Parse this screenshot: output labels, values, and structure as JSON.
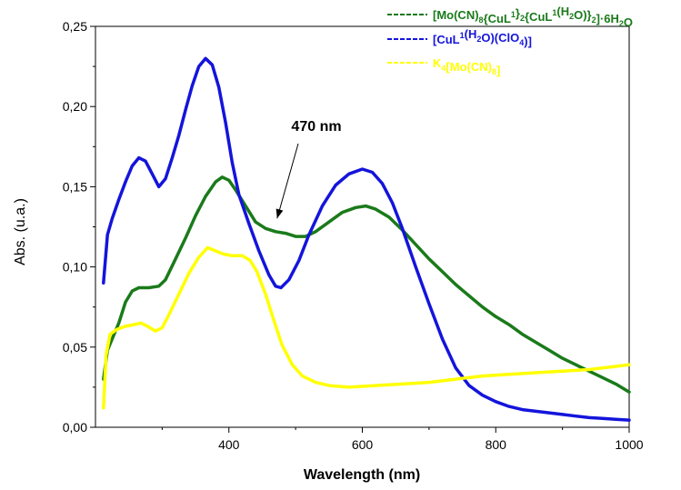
{
  "chart_data": {
    "type": "line",
    "title": "",
    "xlabel": "Wavelength (nm)",
    "ylabel": "Abs. (u.a.)",
    "xlim": [
      200,
      1000
    ],
    "ylim": [
      0.0,
      0.25
    ],
    "x_ticks": [
      {
        "value": 400,
        "label": "400"
      },
      {
        "value": 600,
        "label": "600"
      },
      {
        "value": 800,
        "label": "800"
      },
      {
        "value": 1000,
        "label": "1000"
      }
    ],
    "y_ticks": [
      {
        "value": 0.0,
        "label": "0,00"
      },
      {
        "value": 0.05,
        "label": "0,05"
      },
      {
        "value": 0.1,
        "label": "0,10"
      },
      {
        "value": 0.15,
        "label": "0,15"
      },
      {
        "value": 0.2,
        "label": "0,20"
      },
      {
        "value": 0.25,
        "label": "0,25"
      }
    ],
    "grid": false,
    "legend_position": "top-right",
    "annotations": [
      {
        "text": "470 nm",
        "arrow_to": [
          475,
          0.128
        ]
      }
    ],
    "series": [
      {
        "name": "[Mo(CN)8{CuL1}2{CuL1(H2O)}2]·6H2O",
        "legend_parts": [
          {
            "t": "[Mo(CN)",
            "s": false
          },
          {
            "t": "8",
            "s": true
          },
          {
            "t": "{CuL",
            "s": false
          },
          {
            "t": "1",
            "s": "sup"
          },
          {
            "t": "}",
            "s": false
          },
          {
            "t": "2",
            "s": true
          },
          {
            "t": "{CuL",
            "s": false
          },
          {
            "t": "1",
            "s": "sup"
          },
          {
            "t": "(H",
            "s": false
          },
          {
            "t": "2",
            "s": true
          },
          {
            "t": "O)}",
            "s": false
          },
          {
            "t": "2",
            "s": true
          },
          {
            "t": "]·6H",
            "s": false
          },
          {
            "t": "2",
            "s": true
          },
          {
            "t": "O",
            "s": false
          }
        ],
        "color": "#1a7a1a",
        "points": [
          [
            212,
            0.03
          ],
          [
            218,
            0.048
          ],
          [
            225,
            0.055
          ],
          [
            235,
            0.065
          ],
          [
            245,
            0.078
          ],
          [
            255,
            0.085
          ],
          [
            265,
            0.087
          ],
          [
            280,
            0.087
          ],
          [
            295,
            0.088
          ],
          [
            305,
            0.092
          ],
          [
            320,
            0.105
          ],
          [
            335,
            0.118
          ],
          [
            350,
            0.132
          ],
          [
            365,
            0.144
          ],
          [
            380,
            0.153
          ],
          [
            390,
            0.156
          ],
          [
            400,
            0.154
          ],
          [
            410,
            0.148
          ],
          [
            425,
            0.138
          ],
          [
            440,
            0.128
          ],
          [
            455,
            0.124
          ],
          [
            470,
            0.122
          ],
          [
            485,
            0.121
          ],
          [
            500,
            0.119
          ],
          [
            515,
            0.119
          ],
          [
            530,
            0.122
          ],
          [
            550,
            0.128
          ],
          [
            570,
            0.134
          ],
          [
            590,
            0.137
          ],
          [
            605,
            0.138
          ],
          [
            620,
            0.136
          ],
          [
            640,
            0.131
          ],
          [
            660,
            0.123
          ],
          [
            680,
            0.114
          ],
          [
            700,
            0.105
          ],
          [
            720,
            0.097
          ],
          [
            740,
            0.089
          ],
          [
            760,
            0.082
          ],
          [
            780,
            0.075
          ],
          [
            800,
            0.069
          ],
          [
            820,
            0.064
          ],
          [
            840,
            0.058
          ],
          [
            860,
            0.053
          ],
          [
            880,
            0.048
          ],
          [
            900,
            0.043
          ],
          [
            920,
            0.039
          ],
          [
            940,
            0.035
          ],
          [
            960,
            0.031
          ],
          [
            980,
            0.027
          ],
          [
            1000,
            0.022
          ]
        ]
      },
      {
        "name": "[CuL1(H2O)(ClO4)]",
        "legend_parts": [
          {
            "t": "[CuL",
            "s": false
          },
          {
            "t": "1",
            "s": "sup"
          },
          {
            "t": "(H",
            "s": false
          },
          {
            "t": "2",
            "s": true
          },
          {
            "t": "O)(ClO",
            "s": false
          },
          {
            "t": "4",
            "s": true
          },
          {
            "t": ")]",
            "s": false
          }
        ],
        "color": "#1414dc",
        "points": [
          [
            212,
            0.09
          ],
          [
            218,
            0.12
          ],
          [
            225,
            0.13
          ],
          [
            235,
            0.142
          ],
          [
            245,
            0.153
          ],
          [
            255,
            0.163
          ],
          [
            265,
            0.168
          ],
          [
            275,
            0.166
          ],
          [
            285,
            0.158
          ],
          [
            295,
            0.15
          ],
          [
            305,
            0.155
          ],
          [
            315,
            0.168
          ],
          [
            325,
            0.182
          ],
          [
            335,
            0.198
          ],
          [
            345,
            0.213
          ],
          [
            355,
            0.225
          ],
          [
            365,
            0.23
          ],
          [
            375,
            0.226
          ],
          [
            385,
            0.212
          ],
          [
            395,
            0.19
          ],
          [
            405,
            0.165
          ],
          [
            415,
            0.145
          ],
          [
            430,
            0.127
          ],
          [
            445,
            0.11
          ],
          [
            460,
            0.095
          ],
          [
            470,
            0.088
          ],
          [
            478,
            0.087
          ],
          [
            490,
            0.092
          ],
          [
            505,
            0.104
          ],
          [
            520,
            0.12
          ],
          [
            540,
            0.138
          ],
          [
            560,
            0.151
          ],
          [
            580,
            0.158
          ],
          [
            600,
            0.161
          ],
          [
            615,
            0.159
          ],
          [
            630,
            0.152
          ],
          [
            645,
            0.14
          ],
          [
            660,
            0.124
          ],
          [
            680,
            0.1
          ],
          [
            700,
            0.077
          ],
          [
            720,
            0.055
          ],
          [
            740,
            0.037
          ],
          [
            760,
            0.026
          ],
          [
            780,
            0.02
          ],
          [
            800,
            0.016
          ],
          [
            820,
            0.013
          ],
          [
            840,
            0.011
          ],
          [
            860,
            0.01
          ],
          [
            880,
            0.009
          ],
          [
            900,
            0.008
          ],
          [
            920,
            0.007
          ],
          [
            940,
            0.006
          ],
          [
            960,
            0.0055
          ],
          [
            980,
            0.005
          ],
          [
            1000,
            0.0045
          ]
        ]
      },
      {
        "name": "K4[Mo(CN)8]",
        "legend_parts": [
          {
            "t": "K",
            "s": false
          },
          {
            "t": "4",
            "s": true
          },
          {
            "t": "[Mo(CN)",
            "s": false
          },
          {
            "t": "8",
            "s": true
          },
          {
            "t": "]",
            "s": false
          }
        ],
        "color": "#ffff00",
        "points": [
          [
            212,
            0.012
          ],
          [
            216,
            0.045
          ],
          [
            222,
            0.058
          ],
          [
            232,
            0.061
          ],
          [
            245,
            0.063
          ],
          [
            258,
            0.064
          ],
          [
            268,
            0.065
          ],
          [
            278,
            0.063
          ],
          [
            290,
            0.06
          ],
          [
            300,
            0.062
          ],
          [
            310,
            0.07
          ],
          [
            325,
            0.083
          ],
          [
            340,
            0.096
          ],
          [
            355,
            0.106
          ],
          [
            368,
            0.112
          ],
          [
            380,
            0.11
          ],
          [
            392,
            0.108
          ],
          [
            405,
            0.107
          ],
          [
            420,
            0.107
          ],
          [
            432,
            0.104
          ],
          [
            442,
            0.097
          ],
          [
            455,
            0.083
          ],
          [
            468,
            0.066
          ],
          [
            480,
            0.051
          ],
          [
            495,
            0.039
          ],
          [
            510,
            0.032
          ],
          [
            530,
            0.028
          ],
          [
            550,
            0.026
          ],
          [
            580,
            0.025
          ],
          [
            620,
            0.026
          ],
          [
            660,
            0.027
          ],
          [
            700,
            0.028
          ],
          [
            740,
            0.03
          ],
          [
            780,
            0.032
          ],
          [
            820,
            0.033
          ],
          [
            860,
            0.034
          ],
          [
            900,
            0.035
          ],
          [
            940,
            0.036
          ],
          [
            980,
            0.038
          ],
          [
            1000,
            0.039
          ]
        ]
      }
    ]
  }
}
